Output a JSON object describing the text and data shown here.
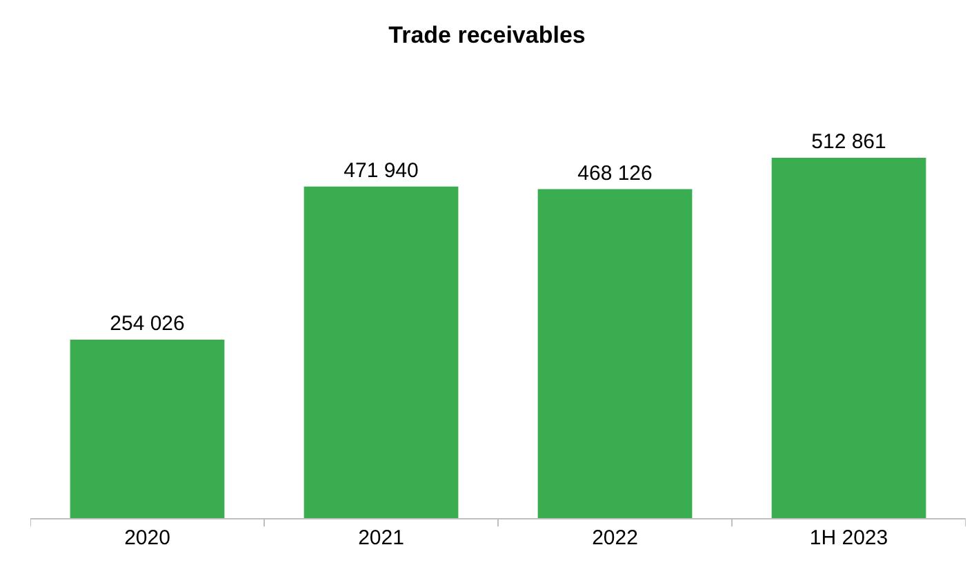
{
  "chart_data": {
    "type": "bar",
    "title": "Trade receivables",
    "categories": [
      "2020",
      "2021",
      "2022",
      "1H 2023"
    ],
    "values": [
      254026,
      471940,
      468126,
      512861
    ],
    "value_labels": [
      "254 026",
      "471 940",
      "468 126",
      "512 861"
    ],
    "color": "#3aad50"
  }
}
